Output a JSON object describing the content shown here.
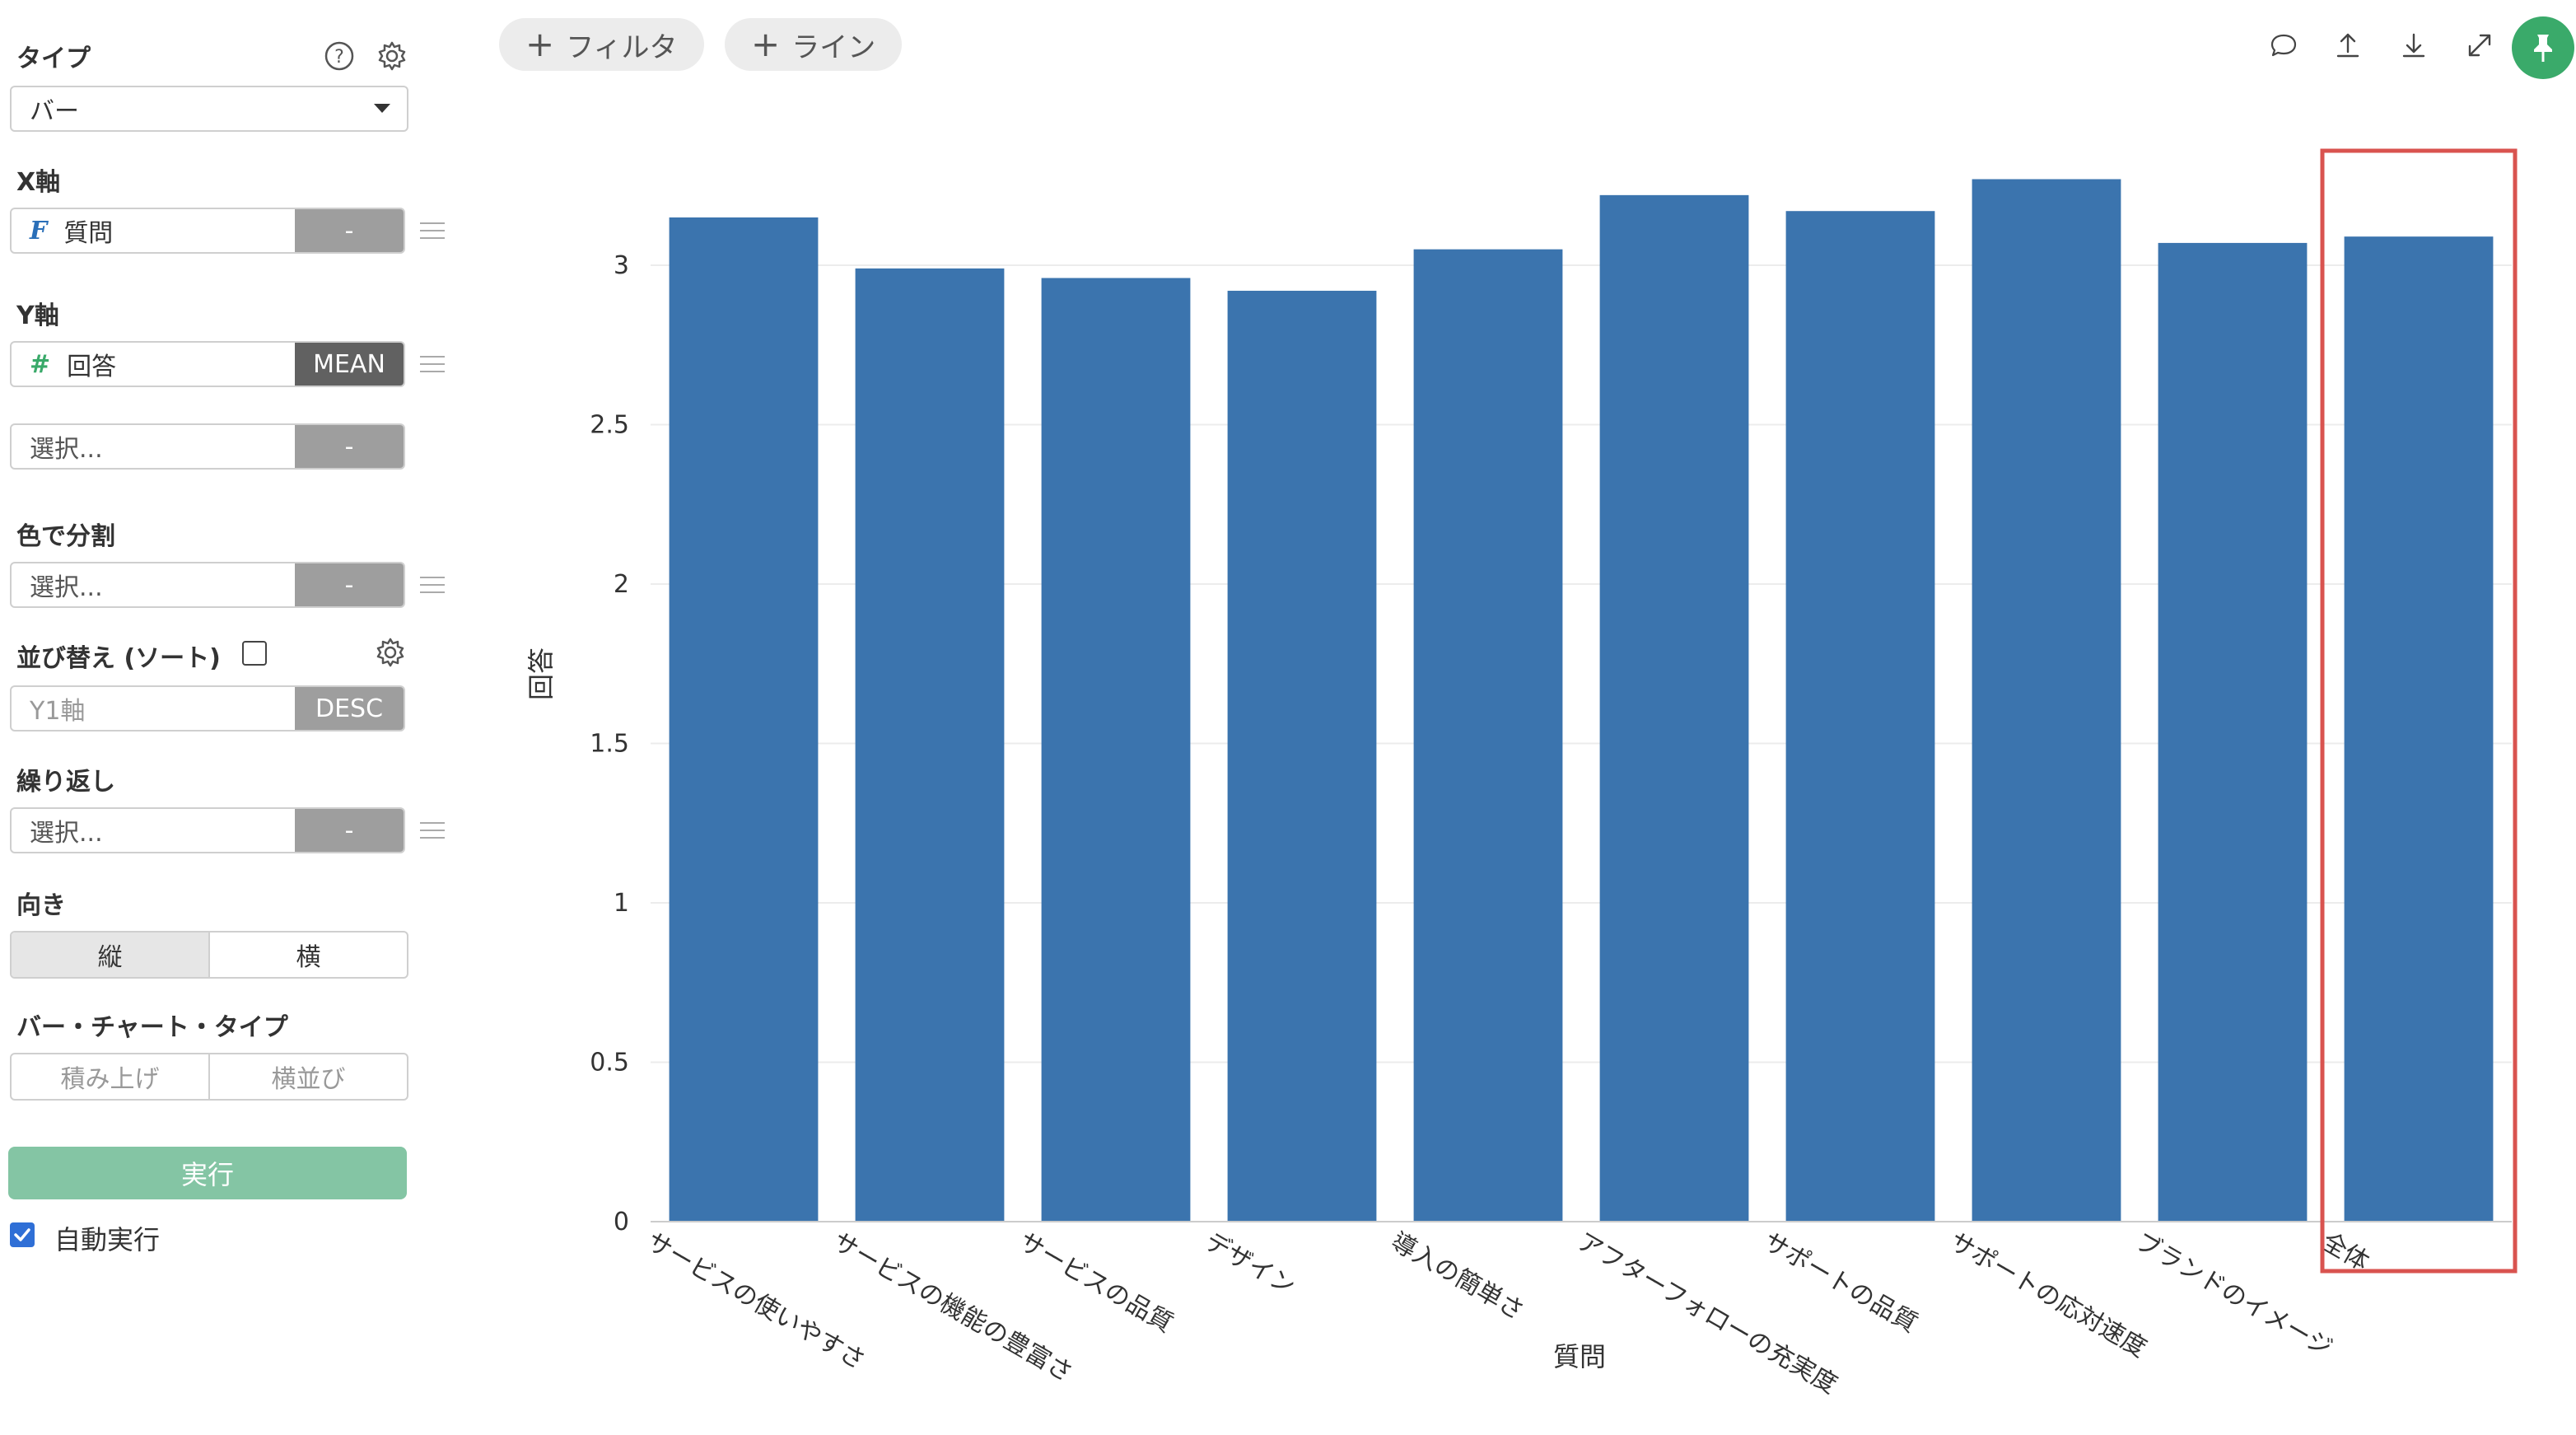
{
  "sidebar": {
    "type": {
      "label": "タイプ",
      "value": "バー"
    },
    "x_axis": {
      "label": "X軸",
      "type_badge": "F",
      "field": "質問",
      "agg": "-"
    },
    "y_axis": {
      "label": "Y軸",
      "type_badge": "#",
      "field": "回答",
      "agg": "MEAN",
      "extra_placeholder": "選択...",
      "extra_agg": "-"
    },
    "color_split": {
      "label": "色で分割",
      "placeholder": "選択...",
      "agg": "-"
    },
    "sort": {
      "label": "並び替え (ソート)",
      "field_placeholder": "Y1軸",
      "order": "DESC"
    },
    "repeat": {
      "label": "繰り返し",
      "placeholder": "選択...",
      "agg": "-"
    },
    "orientation": {
      "label": "向き",
      "options": [
        "縦",
        "横"
      ],
      "selected": "縦"
    },
    "bar_chart_type": {
      "label": "バー・チャート・タイプ",
      "options": [
        "積み上げ",
        "横並び"
      ]
    },
    "run_button": "実行",
    "auto_run": {
      "label": "自動実行",
      "checked": true
    }
  },
  "toolbar": {
    "filter_label": "フィルタ",
    "line_label": "ライン",
    "icons": [
      "comment-icon",
      "upload-icon",
      "download-icon",
      "expand-icon",
      "pin-icon"
    ]
  },
  "colors": {
    "bar": "#3b74ae",
    "highlight": "#d9534f",
    "run_button": "#84c5a4",
    "pin_button": "#3aaa6a",
    "checkbox": "#2f6fd6"
  },
  "chart_data": {
    "type": "bar",
    "categories": [
      "サービスの使いやすさ",
      "サービスの機能の豊富さ",
      "サービスの品質",
      "デザイン",
      "導入の簡単さ",
      "アフターフォローの充実度",
      "サポートの品質",
      "サポートの応対速度",
      "ブランドのイメージ",
      "全体"
    ],
    "values": [
      3.15,
      2.99,
      2.96,
      2.92,
      3.05,
      3.22,
      3.17,
      3.27,
      3.07,
      3.09
    ],
    "xlabel": "質問",
    "ylabel": "回答",
    "ylim": [
      0,
      3.3
    ],
    "yticks": [
      "0",
      "0.5",
      "1",
      "1.5",
      "2",
      "2.5",
      "3"
    ],
    "highlighted_category": "全体",
    "grid": true
  }
}
